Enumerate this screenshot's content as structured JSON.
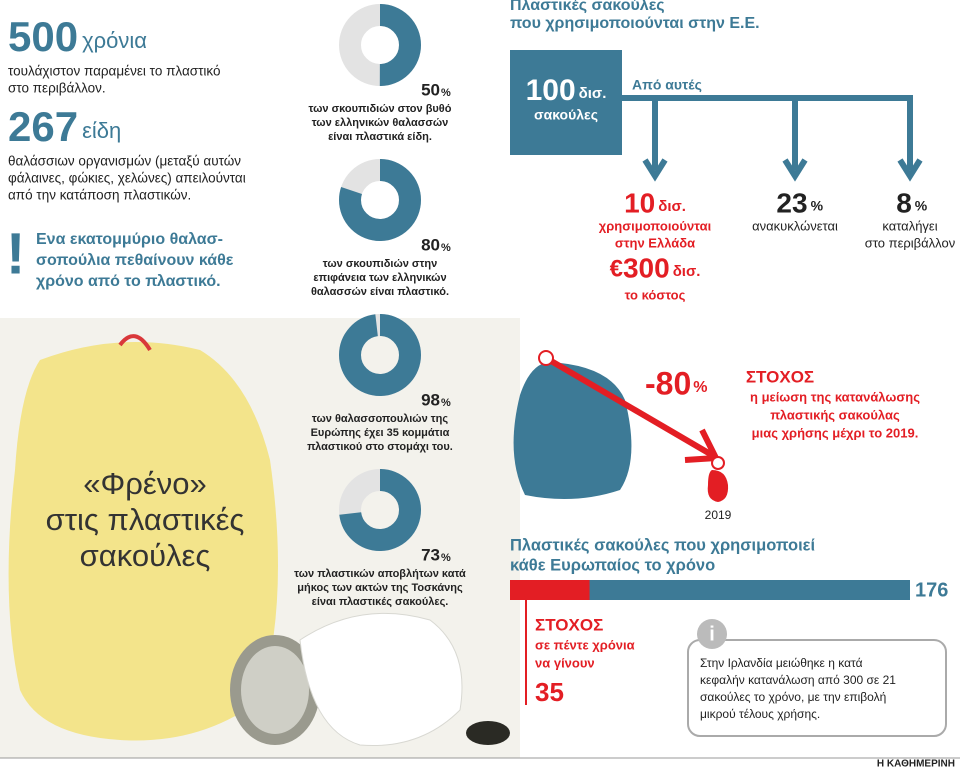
{
  "intro": {
    "stat1": {
      "number": 500,
      "unit": "χρόνια",
      "lines": [
        "τουλάχιστον παραμένει το πλαστικό",
        "στο περιβάλλον."
      ]
    },
    "stat2": {
      "number": 267,
      "unit": "είδη",
      "lines": [
        "θαλάσσιων οργανισμών (μεταξύ αυτών",
        "φάλαινες, φώκιες, χελώνες) απειλούνται",
        "από την κατάποση πλαστικών."
      ]
    },
    "alert": {
      "mark": "!",
      "lines": [
        "Ενα εκατομμύριο θαλασ-",
        "σοπούλια πεθαίνουν κάθε",
        "χρόνο από το πλαστικό."
      ]
    }
  },
  "photo": {
    "title_lines": [
      "«Φρένο»",
      "στις πλαστικές",
      "σακούλες"
    ]
  },
  "donuts": [
    {
      "value": 50,
      "unit": "%",
      "lines": [
        "των σκουπιδιών στον βυθό",
        "των ελληνικών θαλασσών",
        "είναι πλαστικά είδη."
      ]
    },
    {
      "value": 80,
      "unit": "%",
      "lines": [
        "των σκουπιδιών στην",
        "επιφάνεια των ελληνικών",
        "θαλασσών είναι πλαστικό."
      ]
    },
    {
      "value": 98,
      "unit": "%",
      "lines": [
        "των θαλασσοπουλιών της",
        "Ευρώπης έχει 35 κομμάτια",
        "πλαστικού στο στομάχι του."
      ]
    },
    {
      "value": 73,
      "unit": "%",
      "lines": [
        "των πλαστικών αποβλήτων κατά",
        "μήκος των ακτών της Τοσκάνης",
        "είναι πλαστικές σακούλες."
      ]
    }
  ],
  "eu": {
    "title_lines": [
      "Πλαστικές σακούλες",
      "που χρησιμοποιούνται στην Ε.Ε."
    ],
    "total": {
      "number": 100,
      "unit": "δισ.",
      "label": "σακούλες"
    },
    "branch_label": "Από αυτές",
    "greece": {
      "number": 10,
      "unit": "δισ.",
      "lines": [
        "χρησιμοποιούνται",
        "στην Ελλάδα"
      ]
    },
    "cost": {
      "prefix": "€",
      "number": 300,
      "unit": "δισ.",
      "label": "το κόστος"
    },
    "recycled": {
      "number": 23,
      "unit": "%",
      "lines": [
        "ανακυκλώνεται"
      ]
    },
    "environment": {
      "number": 8,
      "unit": "%",
      "lines": [
        "καταλήγει",
        "στο περιβάλλον"
      ]
    }
  },
  "target": {
    "reduction": -80,
    "unit": "%",
    "year": 2019,
    "heading": "ΣΤΟΧΟΣ",
    "lines": [
      "η μείωση της κατανάλωσης",
      "πλαστικής σακούλας",
      "μιας χρήσης μέχρι το 2019."
    ]
  },
  "per_capita": {
    "title_lines": [
      "Πλαστικές σακούλες που χρησιμοποιεί",
      "κάθε Ευρωπαίος το χρόνο"
    ],
    "current": 176,
    "target_heading": "ΣΤΟΧΟΣ",
    "target_lines": [
      "σε πέντε χρόνια",
      "να γίνουν"
    ],
    "target": 35
  },
  "info": {
    "icon": "i",
    "lines": [
      "Στην Ιρλανδία μειώθηκε η κατά",
      "κεφαλήν κατανάλωση από 300 σε 21",
      "σακούλες το χρόνο, με την επιβολή",
      "μικρού τέλους χρήσης."
    ]
  },
  "footer": {
    "source": "Η ΚΑΘΗΜΕΡΙΝΗ"
  }
}
